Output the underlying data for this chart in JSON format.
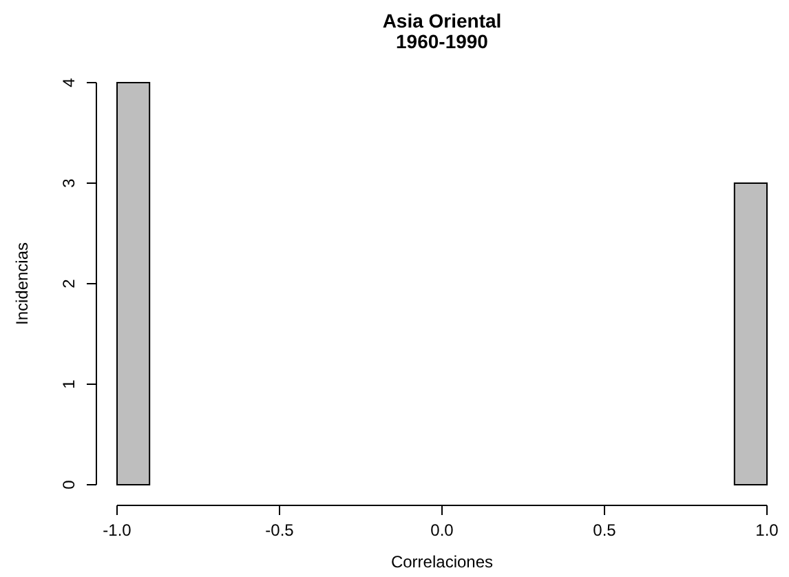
{
  "chart_data": {
    "type": "histogram",
    "title": "Asia Oriental\n1960-1990",
    "xlabel": "Correlaciones",
    "ylabel": "Incidencias",
    "bins": [
      -1.0,
      -0.9,
      -0.8,
      -0.7,
      -0.6,
      -0.5,
      -0.4,
      -0.3,
      -0.2,
      -0.1,
      0.0,
      0.1,
      0.2,
      0.3,
      0.4,
      0.5,
      0.6,
      0.7,
      0.8,
      0.9,
      1.0
    ],
    "values": [
      4,
      0,
      0,
      0,
      0,
      0,
      0,
      0,
      0,
      0,
      0,
      0,
      0,
      0,
      0,
      0,
      0,
      0,
      0,
      3
    ],
    "color": "#bebebe",
    "xlim": [
      -1.0,
      1.0
    ],
    "xticks": [
      {
        "value": -1.0,
        "label": "-1.0"
      },
      {
        "value": -0.5,
        "label": "-0.5"
      },
      {
        "value": 0.0,
        "label": "0.0"
      },
      {
        "value": 0.5,
        "label": "0.5"
      },
      {
        "value": 1.0,
        "label": "1.0"
      }
    ],
    "ylim": [
      0,
      4
    ],
    "yticks": [
      0,
      1,
      2,
      3,
      4
    ],
    "grid": false
  }
}
